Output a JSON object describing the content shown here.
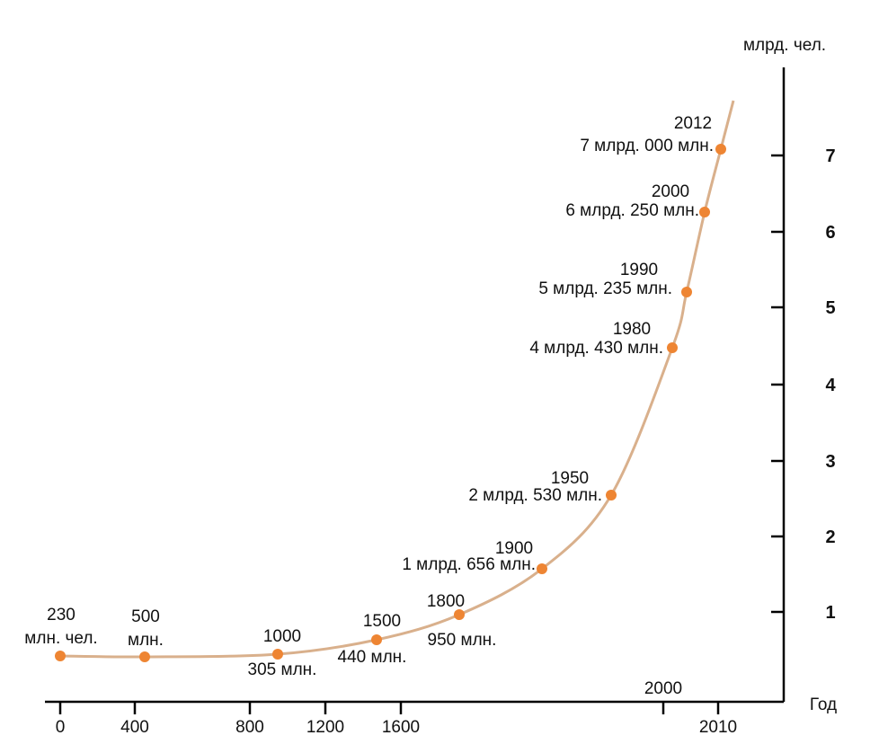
{
  "chart_data": {
    "type": "line",
    "ylabel": "млрд. чел.",
    "xlabel": "Год",
    "x_ticks": [
      "0",
      "400",
      "800",
      "1200",
      "1600",
      "2010"
    ],
    "x_tick_extra": "2000",
    "y_ticks": [
      "1",
      "2",
      "3",
      "4",
      "5",
      "6",
      "7"
    ],
    "ylim": [
      0,
      8
    ],
    "grid": false,
    "series": [
      {
        "points": [
          {
            "x": 0,
            "y": 0.23,
            "year_label": "230",
            "value_label": "млн. чел."
          },
          {
            "x": 500,
            "y": 0.5,
            "year_label": "500",
            "value_label": "млн."
          },
          {
            "x": 1000,
            "y": 0.305,
            "year_label": "1000",
            "value_label": "305 млн."
          },
          {
            "x": 1500,
            "y": 0.44,
            "year_label": "1500",
            "value_label": "440 млн."
          },
          {
            "x": 1800,
            "y": 0.95,
            "year_label": "1800",
            "value_label": "950 млн."
          },
          {
            "x": 1900,
            "y": 1.656,
            "year_label": "1900",
            "value_label": "1 млрд. 656 млн."
          },
          {
            "x": 1950,
            "y": 2.53,
            "year_label": "1950",
            "value_label": "2 млрд. 530 млн."
          },
          {
            "x": 1980,
            "y": 4.43,
            "year_label": "1980",
            "value_label": "4 млрд. 430 млн."
          },
          {
            "x": 1990,
            "y": 5.235,
            "year_label": "1990",
            "value_label": "5 млрд. 235 млн."
          },
          {
            "x": 2000,
            "y": 6.25,
            "year_label": "2000",
            "value_label": "6 млрд. 250 млн."
          },
          {
            "x": 2012,
            "y": 7.0,
            "year_label": "2012",
            "value_label": "7 млрд. 000 млн."
          }
        ]
      }
    ],
    "colors": {
      "curve": "#d9b08c",
      "points": "#ee8533",
      "axes": "#000000"
    }
  }
}
